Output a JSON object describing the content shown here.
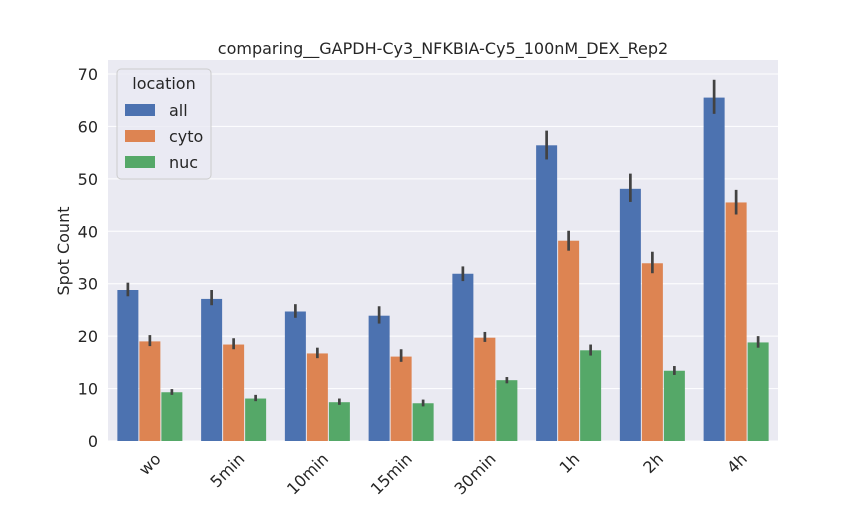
{
  "chart_data": {
    "type": "bar",
    "title": "comparing__GAPDH-Cy3_NFKBIA-Cy5_100nM_DEX_Rep2",
    "xlabel": "",
    "ylabel": "Spot Count",
    "ylim": [
      0,
      72
    ],
    "yticks": [
      0,
      10,
      20,
      30,
      40,
      50,
      60,
      70
    ],
    "categories": [
      "wo",
      "5min",
      "10min",
      "15min",
      "30min",
      "1h",
      "2h",
      "4h"
    ],
    "legend": {
      "title": "location",
      "placement": "top-left"
    },
    "grid": true,
    "series": [
      {
        "name": "all",
        "color": "#4c72b0",
        "values": [
          28.8,
          27.1,
          24.7,
          23.9,
          31.9,
          56.4,
          48.1,
          65.5
        ],
        "err_low": [
          27.6,
          25.9,
          23.5,
          22.4,
          30.5,
          53.7,
          45.6,
          62.4
        ],
        "err_high": [
          30.2,
          28.8,
          26.1,
          25.7,
          33.3,
          59.2,
          51.0,
          68.9
        ]
      },
      {
        "name": "cyto",
        "color": "#dd8452",
        "values": [
          19.0,
          18.4,
          16.7,
          16.1,
          19.7,
          38.2,
          33.9,
          45.5
        ],
        "err_low": [
          18.1,
          17.5,
          15.8,
          15.1,
          18.9,
          36.3,
          32.0,
          43.2
        ],
        "err_high": [
          20.2,
          19.6,
          17.8,
          17.5,
          20.8,
          40.1,
          36.1,
          47.9
        ]
      },
      {
        "name": "nuc",
        "color": "#55a868",
        "values": [
          9.3,
          8.1,
          7.4,
          7.2,
          11.6,
          17.3,
          13.4,
          18.8
        ],
        "err_low": [
          8.8,
          7.6,
          6.9,
          6.6,
          11.0,
          16.3,
          12.6,
          17.8
        ],
        "err_high": [
          9.9,
          8.8,
          8.1,
          7.9,
          12.2,
          18.4,
          14.3,
          20.0
        ]
      }
    ]
  }
}
